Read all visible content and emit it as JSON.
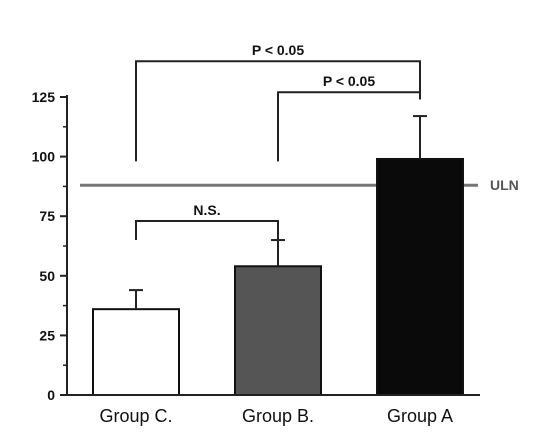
{
  "chart_data": {
    "type": "bar",
    "title": "",
    "xlabel": "",
    "ylabel": "",
    "categories": [
      "Group C.",
      "Group B.",
      "Group A"
    ],
    "values": [
      36,
      54,
      99
    ],
    "error_up": [
      8,
      11,
      18
    ],
    "ylim": [
      0,
      125
    ],
    "yticks": [
      0,
      25,
      50,
      75,
      100,
      125
    ],
    "bar_colors": [
      "#ffffff",
      "#555555",
      "#0a0a0a"
    ],
    "reference_line": {
      "label": "ULN",
      "value": 88,
      "color": "#777777"
    },
    "annotations": [
      {
        "from": 0,
        "to": 2,
        "text": "P < 0.05",
        "level": 140
      },
      {
        "from": 1,
        "to": 2,
        "text": "P < 0.05",
        "level": 127
      },
      {
        "from": 0,
        "to": 1,
        "text": "N.S.",
        "level": 73
      }
    ],
    "grid": false,
    "legend": "none"
  }
}
